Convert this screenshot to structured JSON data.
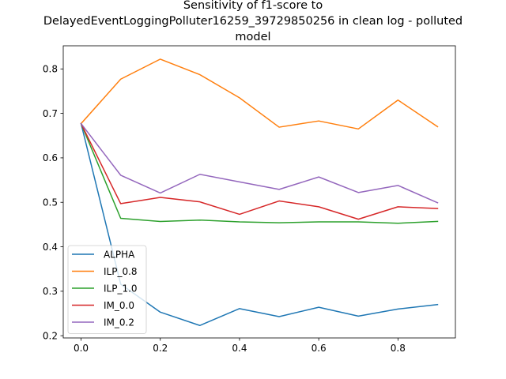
{
  "chart_data": {
    "type": "line",
    "title_lines": [
      "Sensitivity of f1-score to",
      "DelayedEventLoggingPolluter16259_39729850256 in clean log - polluted",
      "model"
    ],
    "xlabel": "",
    "ylabel": "",
    "x": [
      0.0,
      0.1,
      0.2,
      0.3,
      0.4,
      0.5,
      0.6,
      0.7,
      0.8,
      0.9
    ],
    "xlim": [
      -0.045,
      0.945
    ],
    "ylim": [
      0.195,
      0.852
    ],
    "x_ticks": [
      0.0,
      0.2,
      0.4,
      0.6,
      0.8
    ],
    "x_tick_labels": [
      "0.0",
      "0.2",
      "0.4",
      "0.6",
      "0.8"
    ],
    "y_ticks": [
      0.2,
      0.3,
      0.4,
      0.5,
      0.6,
      0.7,
      0.8
    ],
    "y_tick_labels": [
      "0.2",
      "0.3",
      "0.4",
      "0.5",
      "0.6",
      "0.7",
      "0.8"
    ],
    "grid": false,
    "legend_position": "lower-left",
    "series": [
      {
        "name": "ALPHA",
        "color": "#1f77b4",
        "values": [
          0.677,
          0.316,
          0.253,
          0.223,
          0.261,
          0.243,
          0.264,
          0.244,
          0.26,
          0.27
        ]
      },
      {
        "name": "ILP_0.8",
        "color": "#ff7f0e",
        "values": [
          0.677,
          0.777,
          0.822,
          0.787,
          0.735,
          0.669,
          0.683,
          0.665,
          0.73,
          0.67
        ]
      },
      {
        "name": "ILP_1.0",
        "color": "#2ca02c",
        "values": [
          0.677,
          0.464,
          0.457,
          0.46,
          0.456,
          0.454,
          0.456,
          0.456,
          0.453,
          0.457
        ]
      },
      {
        "name": "IM_0.0",
        "color": "#d62728",
        "values": [
          0.677,
          0.497,
          0.511,
          0.501,
          0.473,
          0.503,
          0.49,
          0.462,
          0.49,
          0.486
        ]
      },
      {
        "name": "IM_0.2",
        "color": "#9467bd",
        "values": [
          0.677,
          0.561,
          0.521,
          0.563,
          0.546,
          0.529,
          0.557,
          0.522,
          0.538,
          0.499
        ]
      }
    ]
  }
}
